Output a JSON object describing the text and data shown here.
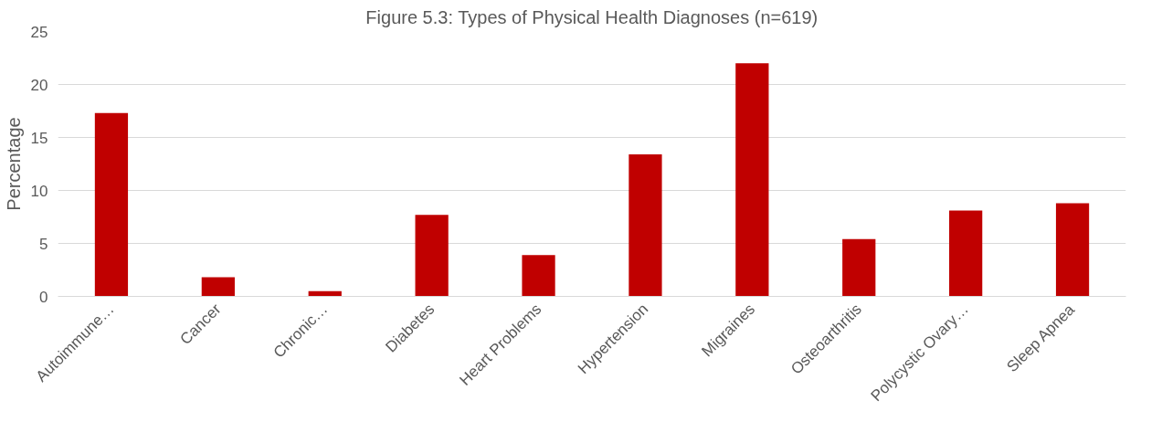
{
  "chart_data": {
    "type": "bar",
    "title": "Figure 5.3: Types of Physical Health Diagnoses (n=619)",
    "ylabel": "Percentage",
    "categories": [
      "Autoimmune…",
      "Cancer",
      "Chronic…",
      "Diabetes",
      "Heart Problems",
      "Hypertension",
      "Migraines",
      "Osteoarthritis",
      "Polycystic Ovary…",
      "Sleep Apnea"
    ],
    "values": [
      17.3,
      1.8,
      0.5,
      7.7,
      3.9,
      13.4,
      22.0,
      5.4,
      8.1,
      8.8
    ],
    "color": "#c00000",
    "ylim": [
      0,
      25
    ],
    "yticks": [
      0,
      5,
      10,
      15,
      20,
      25
    ],
    "grid": "y"
  }
}
